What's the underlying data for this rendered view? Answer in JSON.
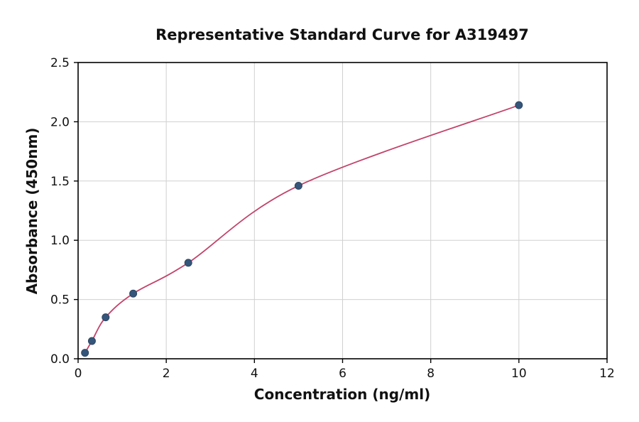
{
  "chart_data": {
    "type": "scatter",
    "title": "Representative Standard Curve for A319497",
    "xlabel": "Concentration (ng/ml)",
    "ylabel": "Absorbance (450nm)",
    "xlim": [
      0,
      12
    ],
    "ylim": [
      0,
      2.5
    ],
    "xticks": [
      0,
      2,
      4,
      6,
      8,
      10,
      12
    ],
    "xtick_labels": [
      "0",
      "2",
      "4",
      "6",
      "8",
      "10",
      "12"
    ],
    "yticks": [
      0,
      0.5,
      1,
      1.5,
      2,
      2.5
    ],
    "ytick_labels": [
      "0.0",
      "0.5",
      "1.0",
      "1.5",
      "2.0",
      "2.5"
    ],
    "grid": true,
    "legend": "none",
    "points": [
      {
        "x": 0.156,
        "y": 0.05
      },
      {
        "x": 0.313,
        "y": 0.15
      },
      {
        "x": 0.625,
        "y": 0.35
      },
      {
        "x": 1.25,
        "y": 0.55
      },
      {
        "x": 2.5,
        "y": 0.81
      },
      {
        "x": 5,
        "y": 1.46
      },
      {
        "x": 10,
        "y": 2.14
      }
    ],
    "curve": {
      "style": "smooth-fit-through-points",
      "color": "#c2436b"
    },
    "colors": {
      "point": "#35567a",
      "point_edge": "#2b4663",
      "curve": "#c2436b",
      "grid": "#d0d0d0",
      "axis": "#000000",
      "background": "#ffffff"
    }
  }
}
